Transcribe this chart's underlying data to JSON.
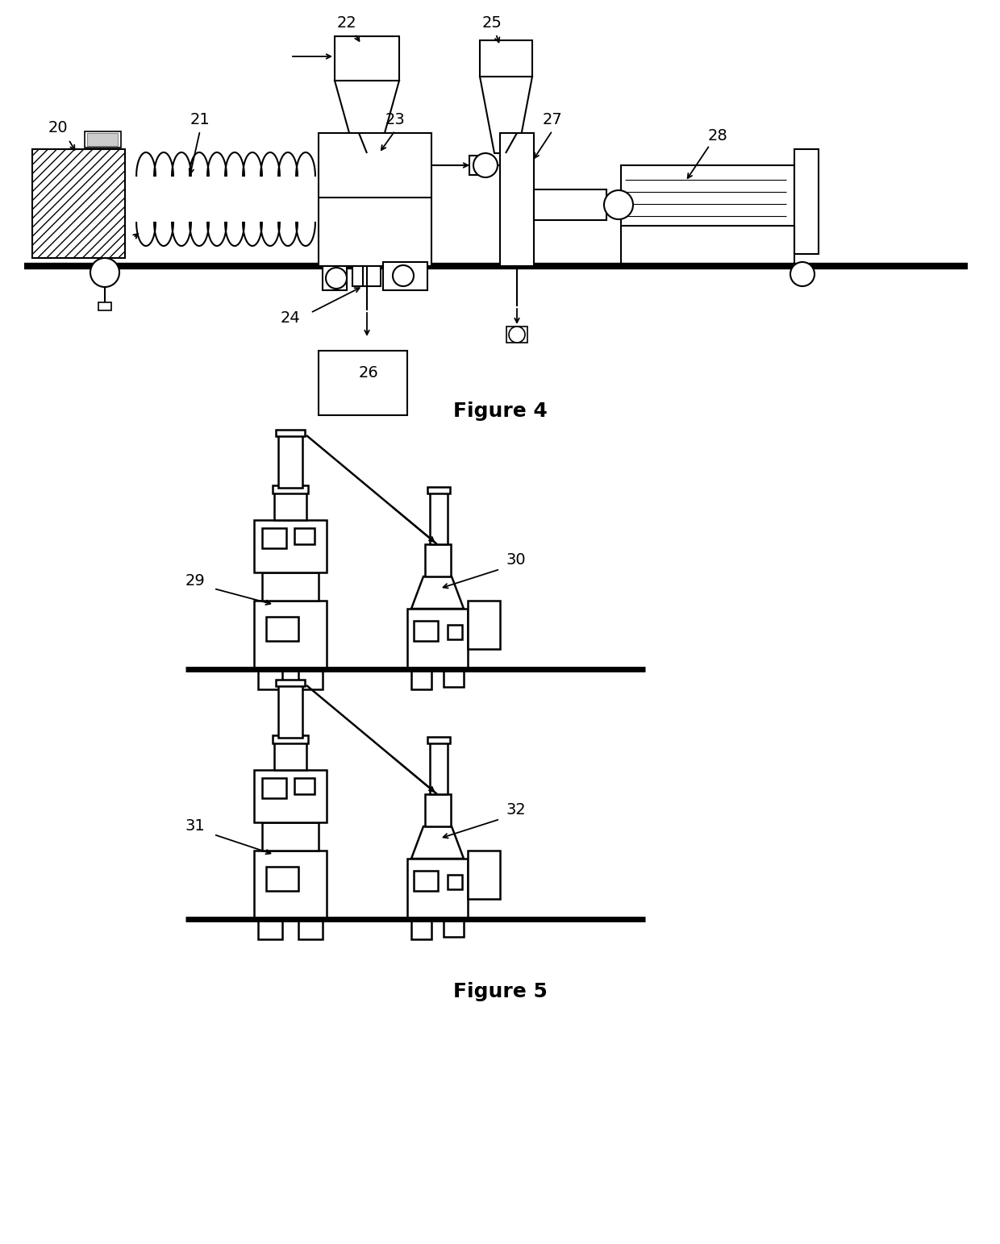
{
  "fig4_title": "Figure 4",
  "fig5_title": "Figure 5",
  "bg_color": "#ffffff",
  "lc": "#000000",
  "lw": 1.5,
  "lw_thick": 5.0,
  "lw_arrow": 1.3
}
